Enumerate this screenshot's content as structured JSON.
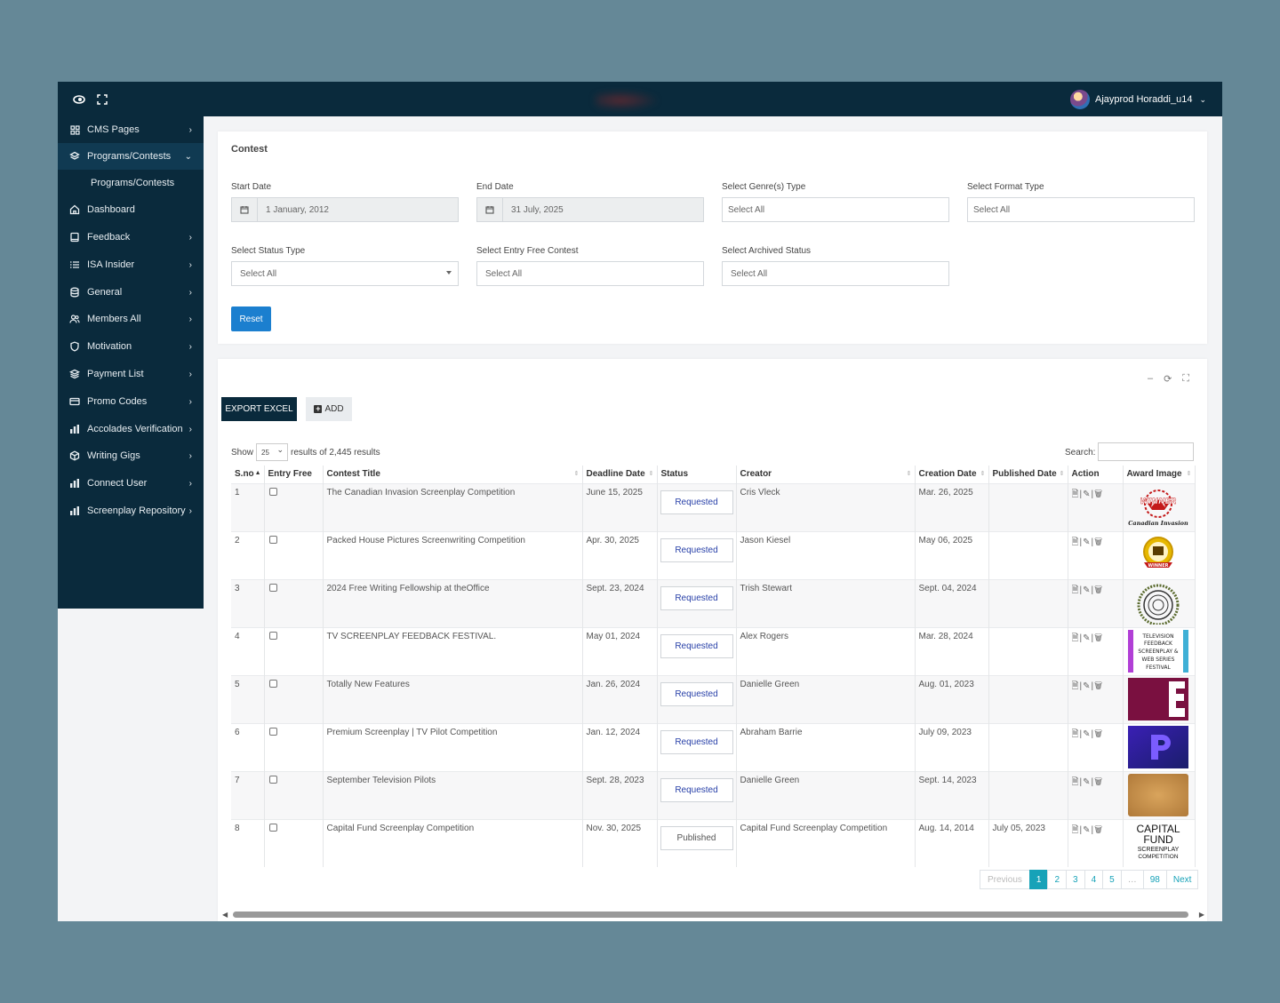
{
  "header": {
    "user_name": "Ajayprod Horaddi_u14",
    "icons": [
      "eye-toggle-icon",
      "fullscreen-icon"
    ]
  },
  "sidebar": {
    "items": [
      {
        "label": "CMS Pages",
        "icon": "grid-icon",
        "has_arrow": true
      },
      {
        "label": "Programs/Contests",
        "icon": "layers-icon",
        "has_arrow": true,
        "active": true
      },
      {
        "label": "Programs/Contests",
        "sub": true
      },
      {
        "label": "Dashboard",
        "icon": "home-icon"
      },
      {
        "label": "Feedback",
        "icon": "book-icon",
        "has_arrow": true
      },
      {
        "label": "ISA Insider",
        "icon": "list-icon",
        "has_arrow": true
      },
      {
        "label": "General",
        "icon": "database-icon",
        "has_arrow": true
      },
      {
        "label": "Members All",
        "icon": "users-icon",
        "has_arrow": true
      },
      {
        "label": "Motivation",
        "icon": "shield-icon",
        "has_arrow": true
      },
      {
        "label": "Payment List",
        "icon": "stack-icon",
        "has_arrow": true
      },
      {
        "label": "Promo Codes",
        "icon": "card-icon",
        "has_arrow": true
      },
      {
        "label": "Accolades Verification",
        "icon": "bar-chart-icon",
        "has_arrow": true
      },
      {
        "label": "Writing Gigs",
        "icon": "box-icon",
        "has_arrow": true
      },
      {
        "label": "Connect User",
        "icon": "bar-chart-icon",
        "has_arrow": true
      },
      {
        "label": "Screenplay Repository",
        "icon": "bar-chart-icon",
        "has_arrow": true
      }
    ]
  },
  "filters": {
    "title": "Contest",
    "start_date": {
      "label": "Start Date",
      "value": "1 January, 2012"
    },
    "end_date": {
      "label": "End Date",
      "value": "31 July, 2025"
    },
    "genre": {
      "label": "Select Genre(s) Type",
      "value": "Select All"
    },
    "format": {
      "label": "Select Format Type",
      "value": "Select All"
    },
    "status": {
      "label": "Select Status Type",
      "value": "Select All"
    },
    "entry_free": {
      "label": "Select Entry Free Contest",
      "value": "Select All"
    },
    "archived": {
      "label": "Select Archived Status",
      "value": "Select All"
    },
    "reset_label": "Reset"
  },
  "table_tools": {
    "export_label": "EXPORT EXCEL",
    "add_label": "ADD",
    "show_label": "Show",
    "page_size": "25",
    "results_text": "results of 2,445 results",
    "search_label": "Search:"
  },
  "columns": [
    "S.no",
    "Entry Free",
    "Contest Title",
    "Deadline Date",
    "Status",
    "Creator",
    "Creation Date",
    "Published Date",
    "Action",
    "Award Image"
  ],
  "rows": [
    {
      "sno": "1",
      "title": "The Canadian Invasion Screenplay Competition",
      "deadline": "June 15, 2025",
      "status": "Requested",
      "creator": "Cris Vleck",
      "created": "Mar. 26, 2025",
      "published": "",
      "award": "award-canadian-invasion"
    },
    {
      "sno": "2",
      "title": "Packed House Pictures Screenwriting Competition",
      "deadline": "Apr. 30, 2025",
      "status": "Requested",
      "creator": "Jason Kiesel",
      "created": "May 06, 2025",
      "published": "",
      "award": "award-winner-medal"
    },
    {
      "sno": "3",
      "title": "2024 Free Writing Fellowship at theOffice",
      "deadline": "Sept. 23, 2024",
      "status": "Requested",
      "creator": "Trish Stewart",
      "created": "Sept. 04, 2024",
      "published": "",
      "award": "award-laurel-circle"
    },
    {
      "sno": "4",
      "title": "TV SCREENPLAY FEEDBACK FESTIVAL.",
      "deadline": "May 01, 2024",
      "status": "Requested",
      "creator": "Alex Rogers",
      "created": "Mar. 28, 2024",
      "published": "",
      "award": "award-tv-feedback"
    },
    {
      "sno": "5",
      "title": "Totally New Features",
      "deadline": "Jan. 26, 2024",
      "status": "Requested",
      "creator": "Danielle Green",
      "created": "Aug. 01, 2023",
      "published": "",
      "award": "award-letter-e"
    },
    {
      "sno": "6",
      "title": "Premium Screenplay | TV Pilot Competition",
      "deadline": "Jan. 12, 2024",
      "status": "Requested",
      "creator": "Abraham Barrie",
      "created": "July 09, 2023",
      "published": "",
      "award": "award-letter-p"
    },
    {
      "sno": "7",
      "title": "September Television Pilots",
      "deadline": "Sept. 28, 2023",
      "status": "Requested",
      "creator": "Danielle Green",
      "created": "Sept. 14, 2023",
      "published": "",
      "award": "award-parchment"
    },
    {
      "sno": "8",
      "title": "Capital Fund Screenplay Competition",
      "deadline": "Nov. 30, 2025",
      "status": "Published",
      "creator": "Capital Fund Screenplay Competition",
      "created": "Aug. 14, 2014",
      "published": "July 05, 2023",
      "award": "award-capital-fund"
    }
  ],
  "award_text": {
    "canadian": "Canadian Invasion",
    "winner": "WINNER",
    "tv_lines": [
      "TELEVISION",
      "FEEDBACK",
      "SCREENPLAY &",
      "WEB SERIES",
      "FESTIVAL"
    ],
    "capital_lines": [
      "CAPITAL",
      "FUND",
      "SCREENPLAY",
      "COMPETITION"
    ]
  },
  "pagination": {
    "previous": "Previous",
    "pages": [
      "1",
      "2",
      "3",
      "4",
      "5",
      "…",
      "98"
    ],
    "current": "1",
    "next": "Next"
  },
  "colors": {
    "navy": "#0a2a3c",
    "primary": "#1b7fcf",
    "pager_accent": "#17a2b8",
    "status_text": "#2840a8"
  }
}
